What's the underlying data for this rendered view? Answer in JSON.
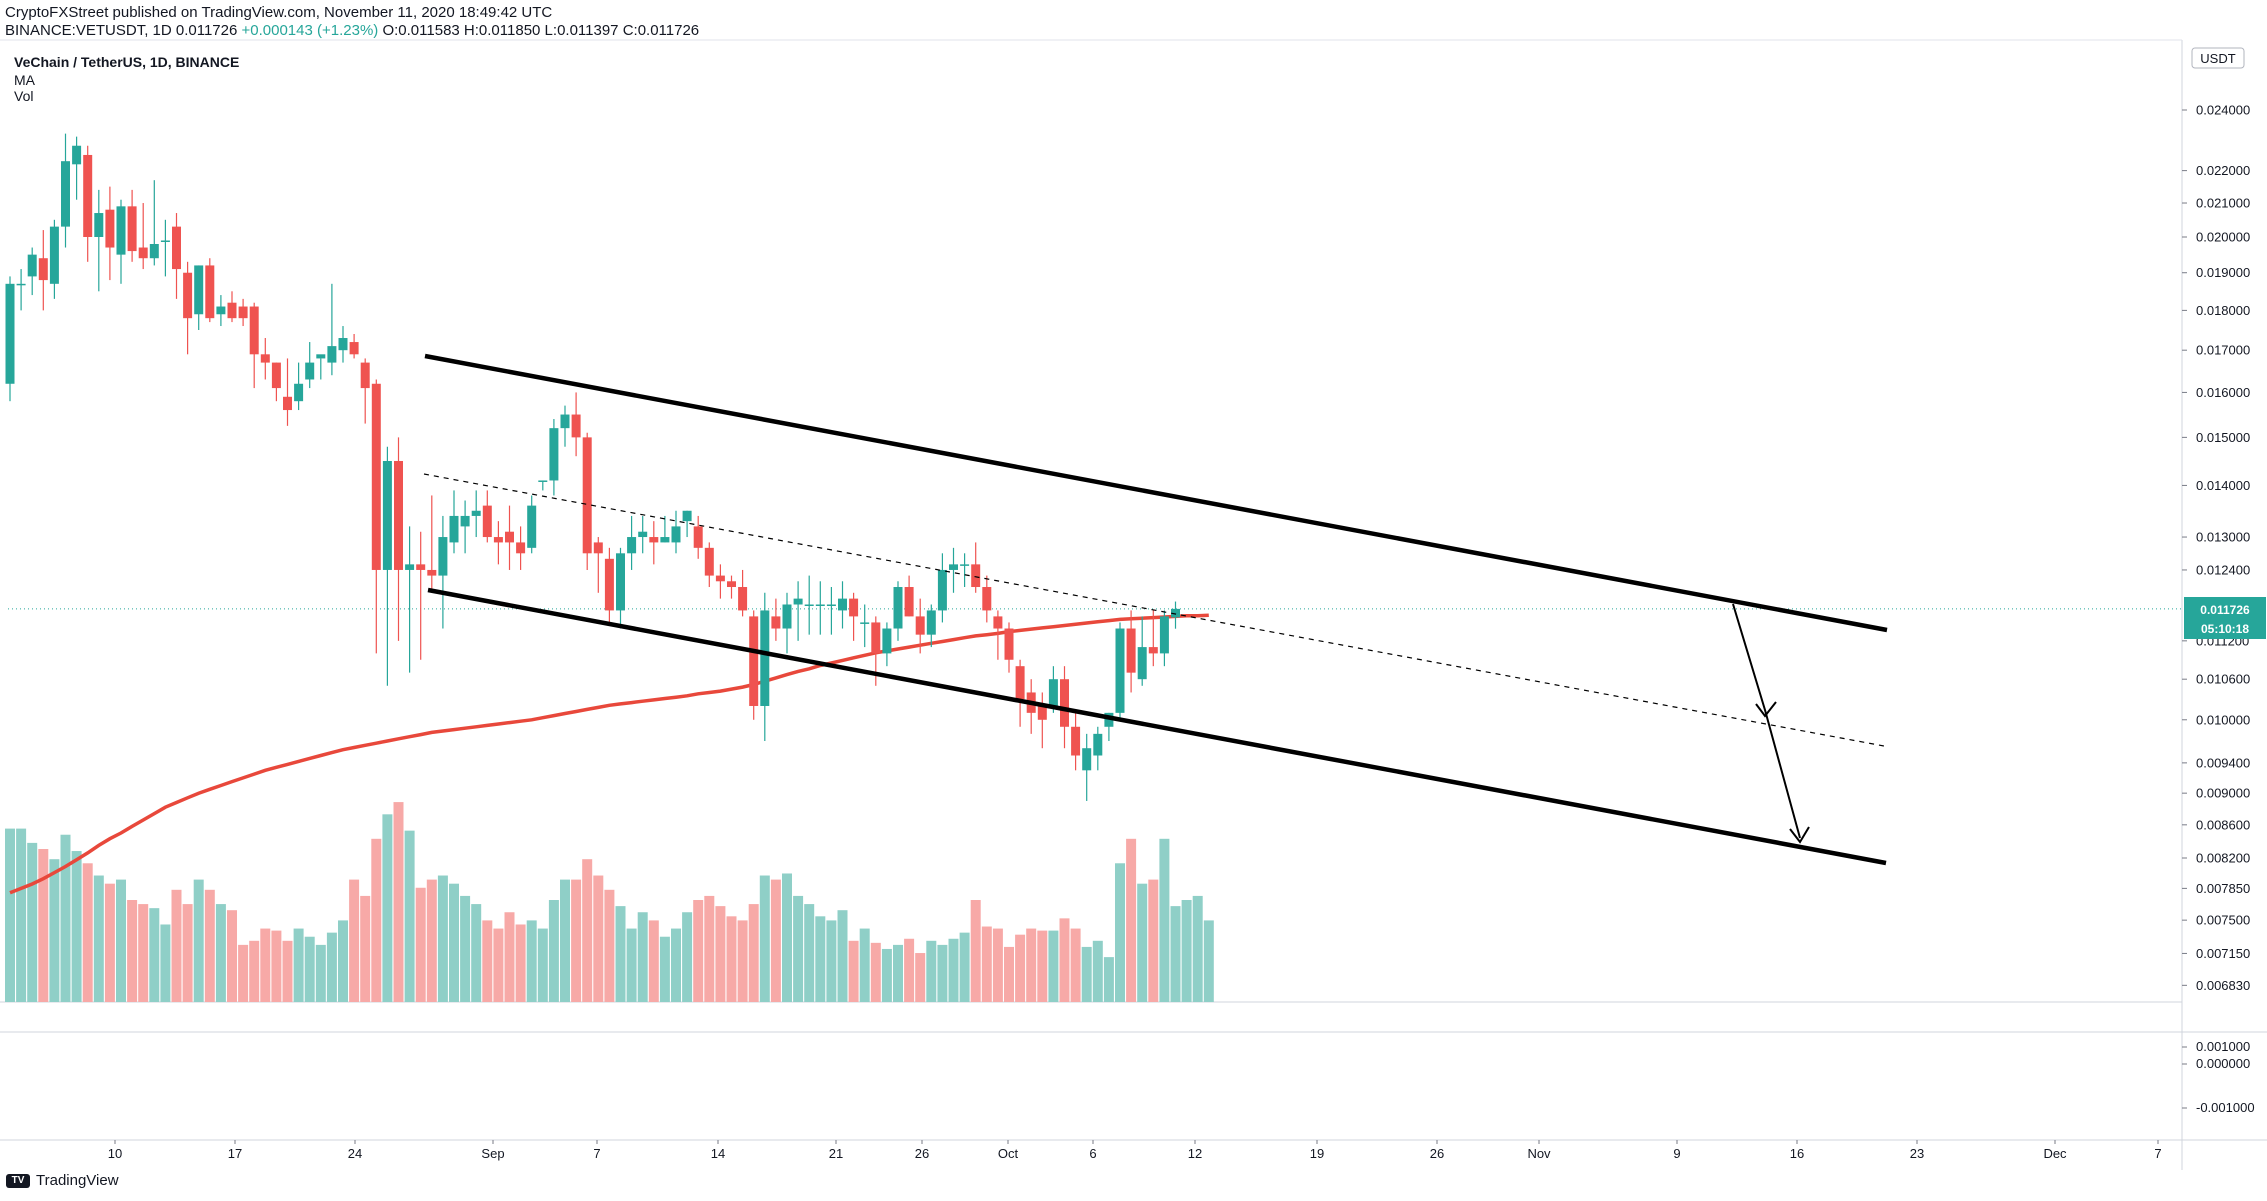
{
  "header": {
    "publisher_line": "CryptoFXStreet published on TradingView.com, November 11, 2020 18:49:42 UTC",
    "symbol": "BINANCE:VETUSDT, 1D",
    "last": "0.011726",
    "change": "+0.000143 (+1.23%)",
    "o_label": "O:",
    "o": "0.011583",
    "h_label": "H:",
    "h": "0.011850",
    "l_label": "L:",
    "l": "0.011397",
    "c_label": "C:",
    "c": "0.011726"
  },
  "legend": {
    "title": "VeChain / TetherUS, 1D, BINANCE",
    "ma": "MA",
    "vol": "Vol"
  },
  "footer": {
    "brand": "TradingView",
    "brand_mark": "TV"
  },
  "colors": {
    "up": "#26a69a",
    "down": "#ef5350",
    "vol_up": "#8fcfc7",
    "vol_down": "#f7a9a7",
    "ma": "#e8483b",
    "channel": "#000000",
    "bg": "#ffffff"
  },
  "chart_data": {
    "type": "candlestick",
    "symbol": "VETUSDT",
    "timeframe": "1D",
    "currency_badge": "USDT",
    "last_price_label": "0.011726",
    "countdown_label": "05:10:18",
    "price_ticks": [
      "0.024000",
      "0.022000",
      "0.021000",
      "0.020000",
      "0.019000",
      "0.018000",
      "0.017000",
      "0.016000",
      "0.015000",
      "0.014000",
      "0.013000",
      "0.012400",
      "0.011200",
      "0.010600",
      "0.010000",
      "0.009400",
      "0.009000",
      "0.008600",
      "0.008200",
      "0.007850",
      "0.007500",
      "0.007150",
      "0.006830"
    ],
    "top_tick_partial": "0.0",
    "indicator_ticks": [
      "0.001000",
      "0.000000",
      "-0.001000"
    ],
    "date_ticks": [
      "10",
      "17",
      "24",
      "Sep",
      "7",
      "14",
      "21",
      "26",
      "Oct",
      "6",
      "12",
      "19",
      "26",
      "Nov",
      "9",
      "16",
      "23",
      "Dec",
      "7"
    ],
    "candles": [
      {
        "o": 0.0162,
        "h": 0.0189,
        "l": 0.0158,
        "c": 0.0187
      },
      {
        "o": 0.0187,
        "h": 0.0191,
        "l": 0.018,
        "c": 0.0187
      },
      {
        "o": 0.0189,
        "h": 0.0197,
        "l": 0.0184,
        "c": 0.0195
      },
      {
        "o": 0.0194,
        "h": 0.0202,
        "l": 0.018,
        "c": 0.0188
      },
      {
        "o": 0.0187,
        "h": 0.0205,
        "l": 0.0183,
        "c": 0.0203
      },
      {
        "o": 0.0203,
        "h": 0.0232,
        "l": 0.0197,
        "c": 0.0223
      },
      {
        "o": 0.0222,
        "h": 0.0231,
        "l": 0.0211,
        "c": 0.0228
      },
      {
        "o": 0.0225,
        "h": 0.0228,
        "l": 0.0193,
        "c": 0.02
      },
      {
        "o": 0.02,
        "h": 0.0214,
        "l": 0.0185,
        "c": 0.0207
      },
      {
        "o": 0.0208,
        "h": 0.0215,
        "l": 0.0188,
        "c": 0.0197
      },
      {
        "o": 0.0195,
        "h": 0.0211,
        "l": 0.0187,
        "c": 0.0209
      },
      {
        "o": 0.0209,
        "h": 0.0214,
        "l": 0.0193,
        "c": 0.0196
      },
      {
        "o": 0.0197,
        "h": 0.021,
        "l": 0.0191,
        "c": 0.0194
      },
      {
        "o": 0.0194,
        "h": 0.0217,
        "l": 0.0192,
        "c": 0.0198
      },
      {
        "o": 0.0199,
        "h": 0.0205,
        "l": 0.0189,
        "c": 0.0199
      },
      {
        "o": 0.0203,
        "h": 0.0207,
        "l": 0.0183,
        "c": 0.0191
      },
      {
        "o": 0.019,
        "h": 0.0193,
        "l": 0.0169,
        "c": 0.0178
      },
      {
        "o": 0.0179,
        "h": 0.0192,
        "l": 0.0175,
        "c": 0.0192
      },
      {
        "o": 0.0192,
        "h": 0.0194,
        "l": 0.0177,
        "c": 0.0178
      },
      {
        "o": 0.0179,
        "h": 0.0184,
        "l": 0.0176,
        "c": 0.0181
      },
      {
        "o": 0.0182,
        "h": 0.0185,
        "l": 0.0177,
        "c": 0.0178
      },
      {
        "o": 0.0181,
        "h": 0.0183,
        "l": 0.0176,
        "c": 0.0178
      },
      {
        "o": 0.0181,
        "h": 0.0182,
        "l": 0.0161,
        "c": 0.0169
      },
      {
        "o": 0.0169,
        "h": 0.0173,
        "l": 0.0163,
        "c": 0.0167
      },
      {
        "o": 0.0167,
        "h": 0.0167,
        "l": 0.0158,
        "c": 0.0161
      },
      {
        "o": 0.0159,
        "h": 0.0168,
        "l": 0.01525,
        "c": 0.0156
      },
      {
        "o": 0.0158,
        "h": 0.0167,
        "l": 0.0156,
        "c": 0.0162
      },
      {
        "o": 0.0163,
        "h": 0.0172,
        "l": 0.0161,
        "c": 0.0167
      },
      {
        "o": 0.0168,
        "h": 0.0168,
        "l": 0.0163,
        "c": 0.0169
      },
      {
        "o": 0.0167,
        "h": 0.0187,
        "l": 0.0164,
        "c": 0.0171
      },
      {
        "o": 0.017,
        "h": 0.0176,
        "l": 0.0167,
        "c": 0.0173
      },
      {
        "o": 0.0172,
        "h": 0.0174,
        "l": 0.0168,
        "c": 0.0169
      },
      {
        "o": 0.0167,
        "h": 0.0168,
        "l": 0.0153,
        "c": 0.0161
      },
      {
        "o": 0.0162,
        "h": 0.0163,
        "l": 0.011,
        "c": 0.0124
      },
      {
        "o": 0.0124,
        "h": 0.0148,
        "l": 0.0105,
        "c": 0.0145
      },
      {
        "o": 0.0145,
        "h": 0.015,
        "l": 0.0112,
        "c": 0.0124
      },
      {
        "o": 0.0124,
        "h": 0.0132,
        "l": 0.0107,
        "c": 0.0125
      },
      {
        "o": 0.0125,
        "h": 0.0131,
        "l": 0.0109,
        "c": 0.0124
      },
      {
        "o": 0.0124,
        "h": 0.0138,
        "l": 0.012,
        "c": 0.0123
      },
      {
        "o": 0.0123,
        "h": 0.0134,
        "l": 0.0114,
        "c": 0.013
      },
      {
        "o": 0.0129,
        "h": 0.0139,
        "l": 0.0127,
        "c": 0.0134
      },
      {
        "o": 0.0132,
        "h": 0.0137,
        "l": 0.0127,
        "c": 0.0134
      },
      {
        "o": 0.0134,
        "h": 0.0139,
        "l": 0.013,
        "c": 0.0135
      },
      {
        "o": 0.0136,
        "h": 0.0139,
        "l": 0.0129,
        "c": 0.013
      },
      {
        "o": 0.013,
        "h": 0.0133,
        "l": 0.0125,
        "c": 0.0129
      },
      {
        "o": 0.0131,
        "h": 0.0136,
        "l": 0.0124,
        "c": 0.0129
      },
      {
        "o": 0.0129,
        "h": 0.0132,
        "l": 0.0124,
        "c": 0.0127
      },
      {
        "o": 0.0128,
        "h": 0.0138,
        "l": 0.0127,
        "c": 0.0136
      },
      {
        "o": 0.0141,
        "h": 0.0141,
        "l": 0.0139,
        "c": 0.0141
      },
      {
        "o": 0.0141,
        "h": 0.0154,
        "l": 0.0138,
        "c": 0.0152
      },
      {
        "o": 0.0152,
        "h": 0.0157,
        "l": 0.0148,
        "c": 0.0155
      },
      {
        "o": 0.0155,
        "h": 0.016,
        "l": 0.0146,
        "c": 0.015
      },
      {
        "o": 0.015,
        "h": 0.0151,
        "l": 0.0124,
        "c": 0.0127
      },
      {
        "o": 0.0129,
        "h": 0.013,
        "l": 0.012,
        "c": 0.0127
      },
      {
        "o": 0.0126,
        "h": 0.0128,
        "l": 0.0115,
        "c": 0.0117
      },
      {
        "o": 0.0117,
        "h": 0.0128,
        "l": 0.0114,
        "c": 0.0127
      },
      {
        "o": 0.0127,
        "h": 0.0134,
        "l": 0.0124,
        "c": 0.013
      },
      {
        "o": 0.013,
        "h": 0.0134,
        "l": 0.0127,
        "c": 0.0131
      },
      {
        "o": 0.013,
        "h": 0.0133,
        "l": 0.0125,
        "c": 0.0129
      },
      {
        "o": 0.0129,
        "h": 0.0134,
        "l": 0.0129,
        "c": 0.013
      },
      {
        "o": 0.0129,
        "h": 0.0135,
        "l": 0.0127,
        "c": 0.0132
      },
      {
        "o": 0.0133,
        "h": 0.0135,
        "l": 0.013,
        "c": 0.0135
      },
      {
        "o": 0.0132,
        "h": 0.0134,
        "l": 0.0126,
        "c": 0.0128
      },
      {
        "o": 0.0128,
        "h": 0.0129,
        "l": 0.0121,
        "c": 0.0123
      },
      {
        "o": 0.0123,
        "h": 0.0125,
        "l": 0.0119,
        "c": 0.0122
      },
      {
        "o": 0.0122,
        "h": 0.0123,
        "l": 0.0119,
        "c": 0.0121
      },
      {
        "o": 0.0121,
        "h": 0.0124,
        "l": 0.0116,
        "c": 0.0117
      },
      {
        "o": 0.0116,
        "h": 0.0117,
        "l": 0.01,
        "c": 0.0102
      },
      {
        "o": 0.0102,
        "h": 0.012,
        "l": 0.0097,
        "c": 0.0117
      },
      {
        "o": 0.0116,
        "h": 0.0119,
        "l": 0.0112,
        "c": 0.0114
      },
      {
        "o": 0.0114,
        "h": 0.012,
        "l": 0.011,
        "c": 0.0118
      },
      {
        "o": 0.0118,
        "h": 0.0122,
        "l": 0.0112,
        "c": 0.0119
      },
      {
        "o": 0.0118,
        "h": 0.0123,
        "l": 0.0113,
        "c": 0.0118
      },
      {
        "o": 0.0118,
        "h": 0.0122,
        "l": 0.0113,
        "c": 0.0118
      },
      {
        "o": 0.0118,
        "h": 0.0121,
        "l": 0.0113,
        "c": 0.0118
      },
      {
        "o": 0.0117,
        "h": 0.0122,
        "l": 0.0114,
        "c": 0.0119
      },
      {
        "o": 0.0119,
        "h": 0.012,
        "l": 0.0112,
        "c": 0.0116
      },
      {
        "o": 0.0115,
        "h": 0.0118,
        "l": 0.0111,
        "c": 0.0115
      },
      {
        "o": 0.0115,
        "h": 0.0116,
        "l": 0.0105,
        "c": 0.011
      },
      {
        "o": 0.011,
        "h": 0.0115,
        "l": 0.0108,
        "c": 0.0114
      },
      {
        "o": 0.0114,
        "h": 0.0122,
        "l": 0.0112,
        "c": 0.0121
      },
      {
        "o": 0.0121,
        "h": 0.0123,
        "l": 0.0116,
        "c": 0.0116
      },
      {
        "o": 0.0116,
        "h": 0.0119,
        "l": 0.011,
        "c": 0.0113
      },
      {
        "o": 0.0113,
        "h": 0.0118,
        "l": 0.0111,
        "c": 0.0117
      },
      {
        "o": 0.0117,
        "h": 0.0127,
        "l": 0.0115,
        "c": 0.0124
      },
      {
        "o": 0.0124,
        "h": 0.0128,
        "l": 0.012,
        "c": 0.0125
      },
      {
        "o": 0.0125,
        "h": 0.0127,
        "l": 0.0121,
        "c": 0.0125
      },
      {
        "o": 0.0125,
        "h": 0.0129,
        "l": 0.012,
        "c": 0.0121
      },
      {
        "o": 0.0121,
        "h": 0.0123,
        "l": 0.0115,
        "c": 0.0117
      },
      {
        "o": 0.0116,
        "h": 0.0117,
        "l": 0.0109,
        "c": 0.0114
      },
      {
        "o": 0.0114,
        "h": 0.0115,
        "l": 0.0107,
        "c": 0.0109
      },
      {
        "o": 0.0108,
        "h": 0.0109,
        "l": 0.0099,
        "c": 0.0103
      },
      {
        "o": 0.0104,
        "h": 0.0106,
        "l": 0.0098,
        "c": 0.0101
      },
      {
        "o": 0.0102,
        "h": 0.0104,
        "l": 0.0096,
        "c": 0.01
      },
      {
        "o": 0.0102,
        "h": 0.0108,
        "l": 0.0101,
        "c": 0.0106
      },
      {
        "o": 0.0106,
        "h": 0.0108,
        "l": 0.0096,
        "c": 0.0099
      },
      {
        "o": 0.0099,
        "h": 0.0101,
        "l": 0.0093,
        "c": 0.0095
      },
      {
        "o": 0.0093,
        "h": 0.0098,
        "l": 0.0089,
        "c": 0.0096
      },
      {
        "o": 0.0095,
        "h": 0.0099,
        "l": 0.0093,
        "c": 0.0098
      },
      {
        "o": 0.0099,
        "h": 0.0101,
        "l": 0.0097,
        "c": 0.0101
      },
      {
        "o": 0.0101,
        "h": 0.0115,
        "l": 0.01,
        "c": 0.0114
      },
      {
        "o": 0.0114,
        "h": 0.0117,
        "l": 0.0104,
        "c": 0.0107
      },
      {
        "o": 0.0106,
        "h": 0.0116,
        "l": 0.0105,
        "c": 0.0111
      },
      {
        "o": 0.0111,
        "h": 0.0117,
        "l": 0.0108,
        "c": 0.011
      },
      {
        "o": 0.011,
        "h": 0.0117,
        "l": 0.0108,
        "c": 0.0116
      },
      {
        "o": 0.011583,
        "h": 0.01185,
        "l": 0.011397,
        "c": 0.011726
      }
    ],
    "volumes": [
      85,
      85,
      78,
      75,
      70,
      82,
      74,
      68,
      62,
      58,
      60,
      50,
      48,
      46,
      38,
      55,
      48,
      60,
      55,
      48,
      45,
      28,
      30,
      36,
      35,
      30,
      36,
      32,
      28,
      34,
      40,
      60,
      52,
      80,
      92,
      98,
      84,
      56,
      60,
      62,
      58,
      52,
      48,
      40,
      36,
      44,
      38,
      40,
      36,
      50,
      60,
      60,
      70,
      62,
      55,
      47,
      36,
      44,
      40,
      32,
      36,
      44,
      50,
      52,
      47,
      42,
      40,
      48,
      62,
      60,
      63,
      52,
      48,
      42,
      40,
      45,
      30,
      36,
      29,
      26,
      28,
      31,
      24,
      30,
      28,
      31,
      34,
      50,
      37,
      36,
      27,
      33,
      36,
      35,
      35,
      41,
      36,
      27,
      30,
      22,
      68,
      80,
      58,
      60,
      80,
      47,
      50,
      52,
      40
    ]
  },
  "annotations": {
    "ma_line": [
      0.0078,
      0.00785,
      0.0079,
      0.00796,
      0.00803,
      0.0081,
      0.00818,
      0.00826,
      0.00835,
      0.00843,
      0.0085,
      0.00858,
      0.00866,
      0.00874,
      0.00882,
      0.00888,
      0.00894,
      0.009,
      0.00905,
      0.0091,
      0.00915,
      0.0092,
      0.00925,
      0.0093,
      0.00934,
      0.00938,
      0.00942,
      0.00946,
      0.0095,
      0.00954,
      0.00958,
      0.00961,
      0.00964,
      0.00967,
      0.0097,
      0.00973,
      0.00976,
      0.00979,
      0.00982,
      0.00984,
      0.00986,
      0.00988,
      0.0099,
      0.00992,
      0.00994,
      0.00996,
      0.00998,
      0.01,
      0.01003,
      0.01006,
      0.01009,
      0.01012,
      0.01015,
      0.01018,
      0.01021,
      0.01023,
      0.01025,
      0.01027,
      0.01029,
      0.01031,
      0.01033,
      0.01035,
      0.01038,
      0.0104,
      0.01042,
      0.01045,
      0.01048,
      0.01052,
      0.01057,
      0.01062,
      0.01067,
      0.01072,
      0.01076,
      0.01081,
      0.01085,
      0.01089,
      0.01093,
      0.01097,
      0.01101,
      0.01104,
      0.01107,
      0.0111,
      0.01113,
      0.01116,
      0.01119,
      0.01122,
      0.01125,
      0.01128,
      0.0113,
      0.01132,
      0.01135,
      0.01137,
      0.01139,
      0.01141,
      0.01143,
      0.01145,
      0.01147,
      0.01149,
      0.01151,
      0.01153,
      0.01155,
      0.01156,
      0.01157,
      0.01158,
      0.01159,
      0.0116,
      0.01161,
      0.01161,
      0.01162
    ]
  }
}
